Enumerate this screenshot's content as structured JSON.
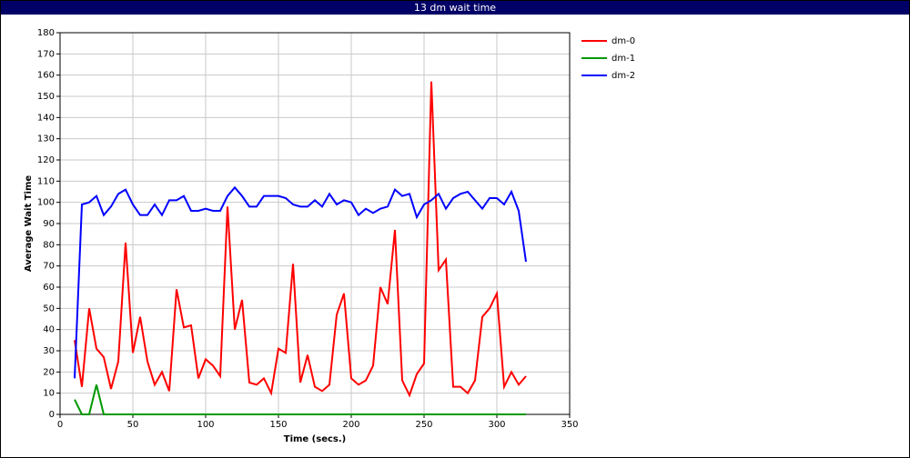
{
  "chart_data": {
    "type": "line",
    "title": "13 dm wait time",
    "x_label": "Time (secs.)",
    "y_label": "Average Wait Time",
    "x": [
      10,
      15,
      20,
      25,
      30,
      35,
      40,
      45,
      50,
      55,
      60,
      65,
      70,
      75,
      80,
      85,
      90,
      95,
      100,
      105,
      110,
      115,
      120,
      125,
      130,
      135,
      140,
      145,
      150,
      155,
      160,
      165,
      170,
      175,
      180,
      185,
      190,
      195,
      200,
      205,
      210,
      215,
      220,
      225,
      230,
      235,
      240,
      245,
      250,
      255,
      260,
      265,
      270,
      275,
      280,
      285,
      290,
      295,
      300,
      305,
      310,
      315,
      320
    ],
    "series": [
      {
        "name": "dm-0",
        "color": "#ff0000",
        "values": [
          35,
          13,
          50,
          31,
          27,
          12,
          25,
          81,
          29,
          46,
          25,
          14,
          20,
          11,
          59,
          41,
          42,
          17,
          26,
          23,
          18,
          98,
          40,
          54,
          15,
          14,
          17,
          10,
          31,
          29,
          71,
          15,
          28,
          13,
          11,
          14,
          47,
          57,
          17,
          14,
          16,
          23,
          60,
          52,
          87,
          16,
          9,
          19,
          24,
          157,
          68,
          73,
          13,
          13,
          10,
          16,
          46,
          50,
          57,
          13,
          20,
          14,
          18
        ]
      },
      {
        "name": "dm-1",
        "color": "#009900",
        "values": [
          7,
          0,
          0,
          14,
          0,
          0,
          0,
          0,
          0,
          0,
          0,
          0,
          0,
          0,
          0,
          0,
          0,
          0,
          0,
          0,
          0,
          0,
          0,
          0,
          0,
          0,
          0,
          0,
          0,
          0,
          0,
          0,
          0,
          0,
          0,
          0,
          0,
          0,
          0,
          0,
          0,
          0,
          0,
          0,
          0,
          0,
          0,
          0,
          0,
          0,
          0,
          0,
          0,
          0,
          0,
          0,
          0,
          0,
          0,
          0,
          0,
          0,
          0
        ]
      },
      {
        "name": "dm-2",
        "color": "#0000ff",
        "values": [
          17,
          99,
          100,
          103,
          94,
          98,
          104,
          106,
          99,
          94,
          94,
          99,
          94,
          101,
          101,
          103,
          96,
          96,
          97,
          96,
          96,
          103,
          107,
          103,
          98,
          98,
          103,
          103,
          103,
          102,
          99,
          98,
          98,
          101,
          98,
          104,
          99,
          101,
          100,
          94,
          97,
          95,
          97,
          98,
          106,
          103,
          104,
          93,
          99,
          101,
          104,
          97,
          102,
          104,
          105,
          101,
          97,
          102,
          102,
          99,
          105,
          96,
          72
        ]
      }
    ],
    "xlim": [
      0,
      350
    ],
    "xticks": [
      0,
      50,
      100,
      150,
      200,
      250,
      300,
      350
    ],
    "ylim": [
      0,
      180
    ],
    "yticks": [
      0,
      10,
      20,
      30,
      40,
      50,
      60,
      70,
      80,
      90,
      100,
      110,
      120,
      130,
      140,
      150,
      160,
      170,
      180
    ],
    "grid": true,
    "legend": "top-right"
  }
}
